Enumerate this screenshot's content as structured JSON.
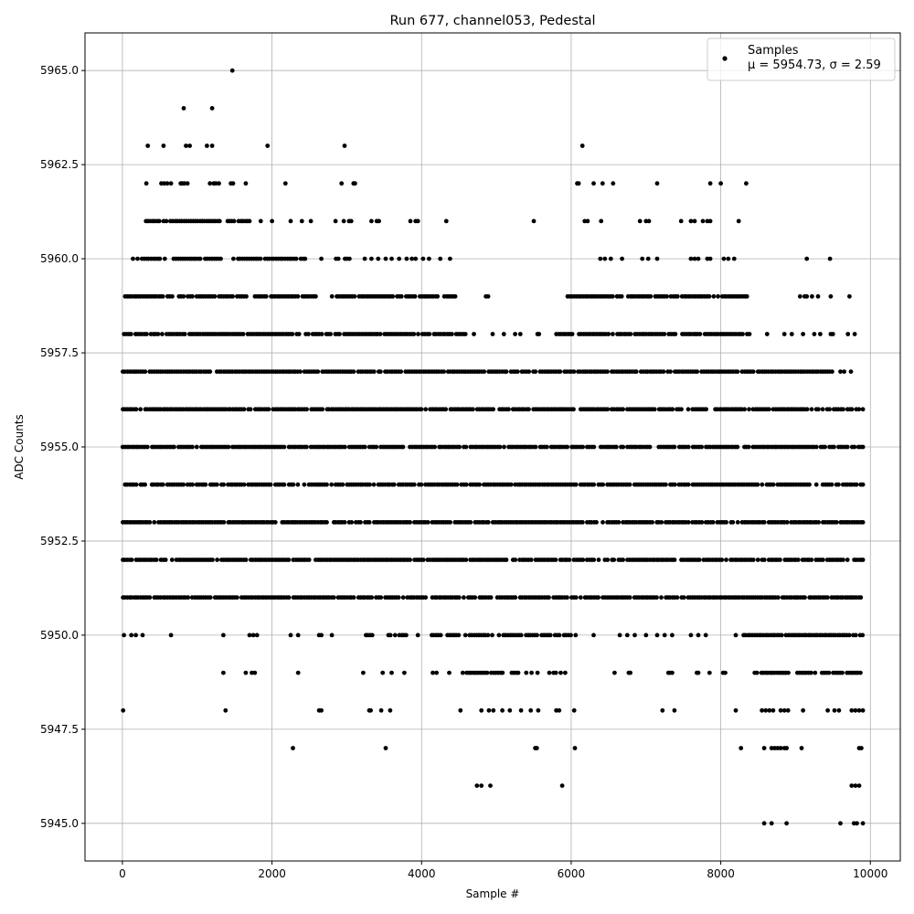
{
  "chart_data": {
    "type": "scatter",
    "title": "Run 677, channel053, Pedestal",
    "xlabel": "Sample #",
    "ylabel": "ADC Counts",
    "xlim": [
      -500,
      10400
    ],
    "ylim": [
      5944,
      5966
    ],
    "xticks": [
      0,
      2000,
      4000,
      6000,
      8000,
      10000
    ],
    "xtick_labels": [
      "0",
      "2000",
      "4000",
      "6000",
      "8000",
      "10000"
    ],
    "yticks": [
      5945.0,
      5947.5,
      5950.0,
      5952.5,
      5955.0,
      5957.5,
      5960.0,
      5962.5,
      5965.0
    ],
    "ytick_labels": [
      "5945.0",
      "5947.5",
      "5950.0",
      "5952.5",
      "5955.0",
      "5957.5",
      "5960.0",
      "5962.5",
      "5965.0"
    ],
    "grid": true,
    "legend_position": "top-right",
    "marker_color": "#000000",
    "series": [
      {
        "name": "Samples",
        "stats_label": "μ = 5954.73, σ = 2.59",
        "approximate_level_coverage": [
          {
            "y": 5965,
            "x": [
              1470
            ]
          },
          {
            "y": 5964,
            "x": [
              820,
              1200
            ]
          },
          {
            "y": 5963,
            "x": [
              340,
              550,
              850,
              900,
              1130,
              1200,
              1940,
              2970,
              6150
            ]
          },
          {
            "y": 5962,
            "x": [
              320,
              520,
              560,
              600,
              650,
              780,
              800,
              830,
              870,
              1170,
              1220,
              1250,
              1290,
              1450,
              1480,
              1650,
              2180,
              2930,
              3090,
              3110,
              6080,
              6100,
              6300,
              6420,
              6560,
              7150,
              7860,
              8000,
              8340
            ]
          },
          {
            "y": 5961,
            "x": [
              [
                280,
                1300
              ],
              [
                1400,
                1700
              ],
              1850,
              2000,
              2250,
              2400,
              2520,
              2850,
              2960,
              3030,
              3060,
              3330,
              3400,
              3430,
              3850,
              3920,
              3950,
              4330,
              5500,
              6180,
              6220,
              6400,
              6920,
              7000,
              7040,
              7470,
              7600,
              7650,
              7760,
              7820,
              7860,
              8240
            ]
          },
          {
            "y": 5960,
            "x": [
              [
                140,
                1330
              ],
              [
                1480,
                2450
              ],
              2660,
              [
                2850,
                3050
              ],
              3240,
              3330,
              3420,
              3520,
              3600,
              3700,
              3800,
              3870,
              3920,
              4020,
              4100,
              4250,
              4380,
              6390,
              6450,
              6530,
              6680,
              6950,
              7030,
              7150,
              7600,
              7650,
              7700,
              7820,
              7860,
              8040,
              8100,
              8180,
              9150,
              9460
            ]
          },
          {
            "y": 5959,
            "x": [
              [
                0,
                2600
              ],
              [
                2800,
                4450
              ],
              4860,
              4890,
              [
                5950,
                8350
              ],
              9060,
              9120,
              9150,
              9220,
              9300,
              9470,
              9720
            ]
          },
          {
            "y": 5958,
            "x": [
              [
                20,
                4600
              ],
              4700,
              4950,
              5100,
              5250,
              5320,
              5550,
              5570,
              [
                5800,
                8400
              ],
              8620,
              8850,
              8950,
              9100,
              9250,
              9330,
              9470,
              9500,
              9700,
              9790
            ]
          },
          {
            "y": 5957,
            "x": [
              [
                0,
                9500
              ],
              9600,
              9650,
              9740
            ]
          },
          {
            "y": 5956,
            "x": [
              [
                0,
                9900
              ]
            ]
          },
          {
            "y": 5955,
            "x": [
              [
                0,
                9900
              ]
            ]
          },
          {
            "y": 5954,
            "x": [
              [
                0,
                9900
              ]
            ]
          },
          {
            "y": 5953,
            "x": [
              [
                0,
                9900
              ]
            ]
          },
          {
            "y": 5952,
            "x": [
              [
                0,
                9900
              ]
            ]
          },
          {
            "y": 5951,
            "x": [
              [
                0,
                9900
              ]
            ]
          },
          {
            "y": 5950,
            "x": [
              20,
              120,
              180,
              270,
              650,
              1350,
              1700,
              1750,
              1800,
              2250,
              2350,
              2630,
              2660,
              2800,
              [
                3250,
                3350
              ],
              [
                3550,
                3800
              ],
              3950,
              [
                4100,
                6000
              ],
              6060,
              6300,
              6650,
              6750,
              6850,
              7000,
              7150,
              7250,
              7350,
              7600,
              7700,
              7800,
              8200,
              [
                8300,
                9900
              ]
            ]
          },
          {
            "y": 5949,
            "x": [
              1350,
              1650,
              1730,
              1770,
              2350,
              3220,
              3480,
              3600,
              3770,
              4150,
              4200,
              4370,
              4550,
              [
                4600,
                5100
              ],
              [
                5200,
                5300
              ],
              5400,
              5470,
              5550,
              [
                5700,
                5800
              ],
              5860,
              5920,
              6580,
              6770,
              6790,
              7300,
              7320,
              7350,
              7680,
              7700,
              7850,
              8030,
              8060,
              [
                8450,
                9900
              ]
            ]
          },
          {
            "y": 5948,
            "x": [
              10,
              1380,
              2630,
              2660,
              3300,
              3320,
              3460,
              3580,
              4520,
              4800,
              4900,
              4960,
              5080,
              5180,
              5330,
              5460,
              5560,
              5800,
              5840,
              6040,
              7220,
              7380,
              8200,
              8550,
              8600,
              8650,
              8700,
              8800,
              8850,
              8900,
              9100,
              9430,
              9520,
              9580,
              9750,
              9800,
              9850,
              9900
            ]
          },
          {
            "y": 5947,
            "x": [
              2280,
              3520,
              5520,
              5540,
              6050,
              8270,
              8580,
              8680,
              8720,
              8760,
              8800,
              8850,
              8880,
              9080,
              9850,
              9880
            ]
          },
          {
            "y": 5946,
            "x": [
              4740,
              4800,
              4920,
              5880,
              9750,
              9800,
              9850
            ]
          },
          {
            "y": 5945,
            "x": [
              8580,
              8680,
              8880,
              9600,
              9780,
              9820,
              9900
            ]
          }
        ]
      }
    ]
  }
}
